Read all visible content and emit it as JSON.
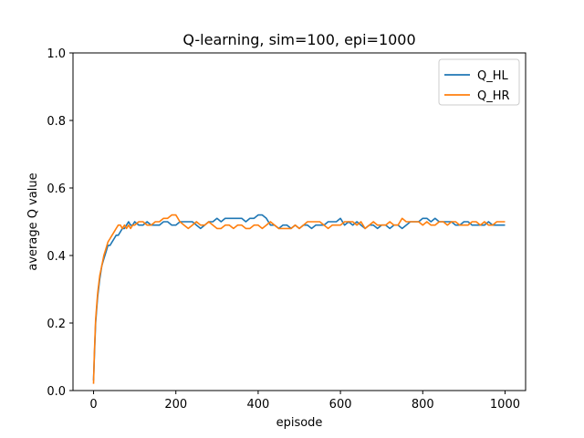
{
  "chart_data": {
    "type": "line",
    "title": "Q-learning, sim=100, epi=1000",
    "xlabel": "episode",
    "ylabel": "average Q value",
    "xlim": [
      -50,
      1050
    ],
    "ylim": [
      0.0,
      1.0
    ],
    "xticks": [
      0,
      200,
      400,
      600,
      800,
      1000
    ],
    "yticks": [
      0.0,
      0.2,
      0.4,
      0.6,
      0.8,
      1.0
    ],
    "xtick_labels": [
      "0",
      "200",
      "400",
      "600",
      "800",
      "1000"
    ],
    "ytick_labels": [
      "0.0",
      "0.2",
      "0.4",
      "0.6",
      "0.8",
      "1.0"
    ],
    "legend": "top-right",
    "grid": false,
    "series": [
      {
        "name": "Q_HL",
        "color": "#1f77b4",
        "x": [
          0,
          2,
          5,
          8,
          10,
          15,
          20,
          25,
          30,
          35,
          40,
          45,
          50,
          55,
          60,
          65,
          70,
          75,
          80,
          85,
          90,
          95,
          100,
          110,
          120,
          130,
          140,
          150,
          160,
          170,
          180,
          190,
          200,
          210,
          220,
          230,
          240,
          250,
          260,
          270,
          280,
          290,
          300,
          310,
          320,
          330,
          340,
          350,
          360,
          370,
          380,
          390,
          400,
          410,
          420,
          430,
          440,
          450,
          460,
          470,
          480,
          490,
          500,
          510,
          520,
          530,
          540,
          550,
          560,
          570,
          580,
          590,
          600,
          610,
          620,
          630,
          640,
          650,
          660,
          670,
          680,
          690,
          700,
          710,
          720,
          730,
          740,
          750,
          760,
          770,
          780,
          790,
          800,
          810,
          820,
          830,
          840,
          850,
          860,
          870,
          880,
          890,
          900,
          910,
          920,
          930,
          940,
          950,
          960,
          970,
          980,
          990,
          1000
        ],
        "y": [
          0.03,
          0.1,
          0.2,
          0.25,
          0.28,
          0.33,
          0.37,
          0.39,
          0.41,
          0.43,
          0.43,
          0.44,
          0.45,
          0.46,
          0.46,
          0.47,
          0.48,
          0.48,
          0.49,
          0.5,
          0.49,
          0.49,
          0.5,
          0.49,
          0.49,
          0.5,
          0.49,
          0.49,
          0.49,
          0.5,
          0.5,
          0.49,
          0.49,
          0.5,
          0.5,
          0.5,
          0.5,
          0.49,
          0.48,
          0.49,
          0.5,
          0.5,
          0.51,
          0.5,
          0.51,
          0.51,
          0.51,
          0.51,
          0.51,
          0.5,
          0.51,
          0.51,
          0.52,
          0.52,
          0.51,
          0.49,
          0.49,
          0.48,
          0.49,
          0.49,
          0.48,
          0.49,
          0.48,
          0.49,
          0.49,
          0.48,
          0.49,
          0.49,
          0.49,
          0.5,
          0.5,
          0.5,
          0.51,
          0.49,
          0.5,
          0.49,
          0.5,
          0.49,
          0.48,
          0.49,
          0.49,
          0.48,
          0.49,
          0.49,
          0.48,
          0.49,
          0.49,
          0.48,
          0.49,
          0.5,
          0.5,
          0.5,
          0.51,
          0.51,
          0.5,
          0.51,
          0.5,
          0.5,
          0.5,
          0.5,
          0.49,
          0.49,
          0.5,
          0.5,
          0.49,
          0.49,
          0.49,
          0.49,
          0.5,
          0.49,
          0.49,
          0.49,
          0.49
        ]
      },
      {
        "name": "Q_HR",
        "color": "#ff7f0e",
        "x": [
          0,
          2,
          5,
          8,
          10,
          15,
          20,
          25,
          30,
          35,
          40,
          45,
          50,
          55,
          60,
          65,
          70,
          75,
          80,
          85,
          90,
          95,
          100,
          110,
          120,
          130,
          140,
          150,
          160,
          170,
          180,
          190,
          200,
          210,
          220,
          230,
          240,
          250,
          260,
          270,
          280,
          290,
          300,
          310,
          320,
          330,
          340,
          350,
          360,
          370,
          380,
          390,
          400,
          410,
          420,
          430,
          440,
          450,
          460,
          470,
          480,
          490,
          500,
          510,
          520,
          530,
          540,
          550,
          560,
          570,
          580,
          590,
          600,
          610,
          620,
          630,
          640,
          650,
          660,
          670,
          680,
          690,
          700,
          710,
          720,
          730,
          740,
          750,
          760,
          770,
          780,
          790,
          800,
          810,
          820,
          830,
          840,
          850,
          860,
          870,
          880,
          890,
          900,
          910,
          920,
          930,
          940,
          950,
          960,
          970,
          980,
          990,
          1000
        ],
        "y": [
          0.02,
          0.11,
          0.21,
          0.26,
          0.29,
          0.34,
          0.37,
          0.4,
          0.42,
          0.44,
          0.45,
          0.46,
          0.47,
          0.48,
          0.49,
          0.49,
          0.48,
          0.49,
          0.48,
          0.49,
          0.48,
          0.49,
          0.49,
          0.5,
          0.5,
          0.49,
          0.49,
          0.5,
          0.5,
          0.51,
          0.51,
          0.52,
          0.52,
          0.5,
          0.49,
          0.48,
          0.49,
          0.5,
          0.49,
          0.49,
          0.5,
          0.49,
          0.48,
          0.48,
          0.49,
          0.49,
          0.48,
          0.49,
          0.49,
          0.48,
          0.48,
          0.49,
          0.49,
          0.48,
          0.49,
          0.5,
          0.49,
          0.48,
          0.48,
          0.48,
          0.48,
          0.49,
          0.48,
          0.49,
          0.5,
          0.5,
          0.5,
          0.5,
          0.49,
          0.48,
          0.49,
          0.49,
          0.49,
          0.5,
          0.5,
          0.5,
          0.49,
          0.5,
          0.48,
          0.49,
          0.5,
          0.49,
          0.49,
          0.49,
          0.5,
          0.49,
          0.49,
          0.51,
          0.5,
          0.5,
          0.5,
          0.5,
          0.49,
          0.5,
          0.49,
          0.49,
          0.5,
          0.5,
          0.49,
          0.5,
          0.5,
          0.49,
          0.49,
          0.49,
          0.5,
          0.5,
          0.49,
          0.5,
          0.49,
          0.49,
          0.5,
          0.5,
          0.5
        ]
      }
    ]
  }
}
